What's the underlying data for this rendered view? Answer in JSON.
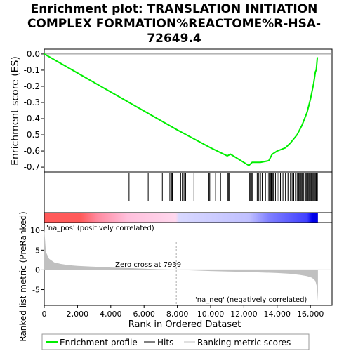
{
  "chart_data": {
    "type": "line",
    "title_lines": [
      "Enrichment plot: TRANSLATION INITIATION",
      "COMPLEX FORMATION%REACTOME%R-HSA-",
      "72649.4"
    ],
    "xlabel": "Rank in Ordered Dataset",
    "es_ylabel": "Enrichment score (ES)",
    "metric_ylabel": "Ranked list metric (PreRanked)",
    "xlim": [
      0,
      17300
    ],
    "x_ticks": [
      0,
      2000,
      4000,
      6000,
      8000,
      10000,
      12000,
      14000,
      16000
    ],
    "x_tick_labels": [
      "0",
      "2,000",
      "4,000",
      "6,000",
      "8,000",
      "10,000",
      "12,000",
      "14,000",
      "16,000"
    ],
    "es_ylim": [
      -0.73,
      0.03
    ],
    "es_ticks": [
      0.0,
      -0.1,
      -0.2,
      -0.3,
      -0.4,
      -0.5,
      -0.6,
      -0.7
    ],
    "es_tick_labels": [
      "0.0",
      "-0.1",
      "-0.2",
      "-0.3",
      "-0.4",
      "-0.5",
      "-0.6",
      "-0.7"
    ],
    "metric_ylim": [
      -9,
      12
    ],
    "metric_ticks": [
      10,
      5,
      0,
      -5
    ],
    "metric_tick_labels": [
      "10",
      "5",
      "0",
      "-5"
    ],
    "zero_cross_rank": 7939,
    "zero_cross_label": "Zero cross at 7939",
    "pos_label": "'na_pos' (positively correlated)",
    "neg_label": "'na_neg' (negatively correlated)",
    "legend": [
      "Enrichment profile",
      "Hits",
      "Ranking metric scores"
    ],
    "colors": {
      "es_line": "#00ee00",
      "hits": "#000000",
      "metric_fill": "#c0c0c0",
      "pos_color": "#ff0000",
      "neg_color": "#0000ff",
      "pos_text": "#ff0000",
      "neg_text": "#0000cc"
    },
    "series": [
      {
        "name": "Enrichment profile",
        "x": [
          0,
          5100,
          8000,
          10000,
          11000,
          11200,
          12300,
          12500,
          13000,
          13500,
          13700,
          14000,
          14500,
          14800,
          15200,
          15500,
          15800,
          16000,
          16200,
          16300,
          16350,
          16420
        ],
        "y": [
          0.0,
          -0.3,
          -0.47,
          -0.58,
          -0.63,
          -0.62,
          -0.69,
          -0.67,
          -0.67,
          -0.66,
          -0.62,
          -0.6,
          -0.58,
          -0.55,
          -0.5,
          -0.44,
          -0.36,
          -0.28,
          -0.18,
          -0.11,
          -0.1,
          -0.02
        ]
      }
    ],
    "hits": [
      5100,
      6250,
      7100,
      7550,
      7650,
      7700,
      8200,
      8300,
      8400,
      8500,
      9000,
      9900,
      9950,
      10300,
      10600,
      11000,
      11050,
      11100,
      11150,
      12300,
      12350,
      12400,
      12450,
      12500,
      12800,
      12900,
      13000,
      13100,
      13300,
      13400,
      13500,
      13550,
      13600,
      13650,
      13700,
      13750,
      13800,
      13900,
      14000,
      14100,
      14200,
      14350,
      14500,
      14650,
      14700,
      14800,
      14900,
      15000,
      15100,
      15200,
      15300,
      15350,
      15400,
      15450,
      15500,
      15550,
      15600,
      15700,
      15750,
      15800,
      15850,
      15900,
      15950,
      16000,
      16050,
      16100,
      16150,
      16200,
      16250,
      16300,
      16350,
      16400,
      16420
    ],
    "metric_curve": {
      "x": [
        0,
        100,
        300,
        600,
        1000,
        1500,
        2000,
        3000,
        4000,
        5000,
        6000,
        7000,
        7939,
        9000,
        10000,
        11000,
        12000,
        13000,
        14000,
        14800,
        15400,
        15800,
        16100,
        16300,
        16400,
        16450
      ],
      "y": [
        10.5,
        4.5,
        2.8,
        1.9,
        1.5,
        1.2,
        1.0,
        0.8,
        0.6,
        0.45,
        0.3,
        0.15,
        0.0,
        -0.15,
        -0.3,
        -0.4,
        -0.5,
        -0.65,
        -0.8,
        -1.0,
        -1.3,
        -1.6,
        -2.0,
        -2.8,
        -4.5,
        -8.0
      ]
    },
    "color_bar_stops": [
      {
        "x": 0,
        "color": "#ff5a5a"
      },
      {
        "x": 2200,
        "color": "#ff5a5a"
      },
      {
        "x": 3200,
        "color": "#ff8aa0"
      },
      {
        "x": 5000,
        "color": "#ffc0dc"
      },
      {
        "x": 7900,
        "color": "#ffd8ee"
      },
      {
        "x": 8100,
        "color": "#d8d8ff"
      },
      {
        "x": 12300,
        "color": "#c0c0ff"
      },
      {
        "x": 13500,
        "color": "#8080ff"
      },
      {
        "x": 15800,
        "color": "#4040ff"
      },
      {
        "x": 16100,
        "color": "#0000ee"
      },
      {
        "x": 16450,
        "color": "#0000dd"
      }
    ]
  }
}
